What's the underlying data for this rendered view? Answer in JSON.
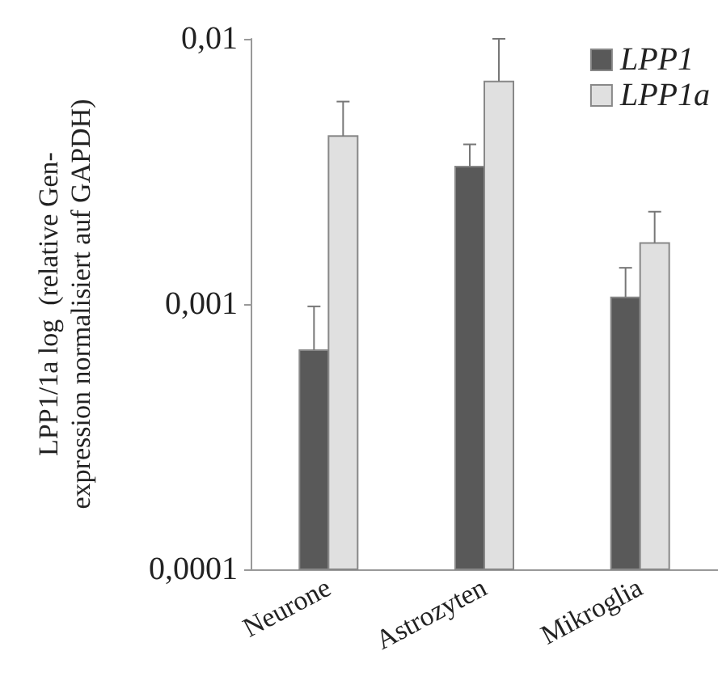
{
  "chart_data": {
    "type": "bar",
    "ylabel": "LPP1/1a log  (relative Gen-\nexpression normalisiert auf GAPDH)",
    "categories": [
      "Neurone",
      "Astrozyten",
      "Mikroglia"
    ],
    "series": [
      {
        "name": "LPP1",
        "color": "#595959",
        "values": [
          0.00067,
          0.0033,
          0.00106
        ],
        "errors": [
          [
            0.00067,
            0.00098
          ],
          [
            0.0033,
            0.004
          ],
          [
            0.00106,
            0.00137
          ]
        ]
      },
      {
        "name": "LPP1a",
        "color": "#e0e0e0",
        "values": [
          0.0043,
          0.0069,
          0.0017
        ],
        "errors": [
          [
            0.0043,
            0.0058
          ],
          [
            0.0069,
            0.01
          ],
          [
            0.0017,
            0.00223
          ]
        ]
      }
    ],
    "log": true,
    "ylim": [
      0.0001,
      0.01
    ],
    "yticks": [
      {
        "value": 0.0001,
        "label": "0,0001"
      },
      {
        "value": 0.001,
        "label": "0,001"
      },
      {
        "value": 0.01,
        "label": "0,01"
      }
    ],
    "grid": false,
    "legend": "top right"
  }
}
